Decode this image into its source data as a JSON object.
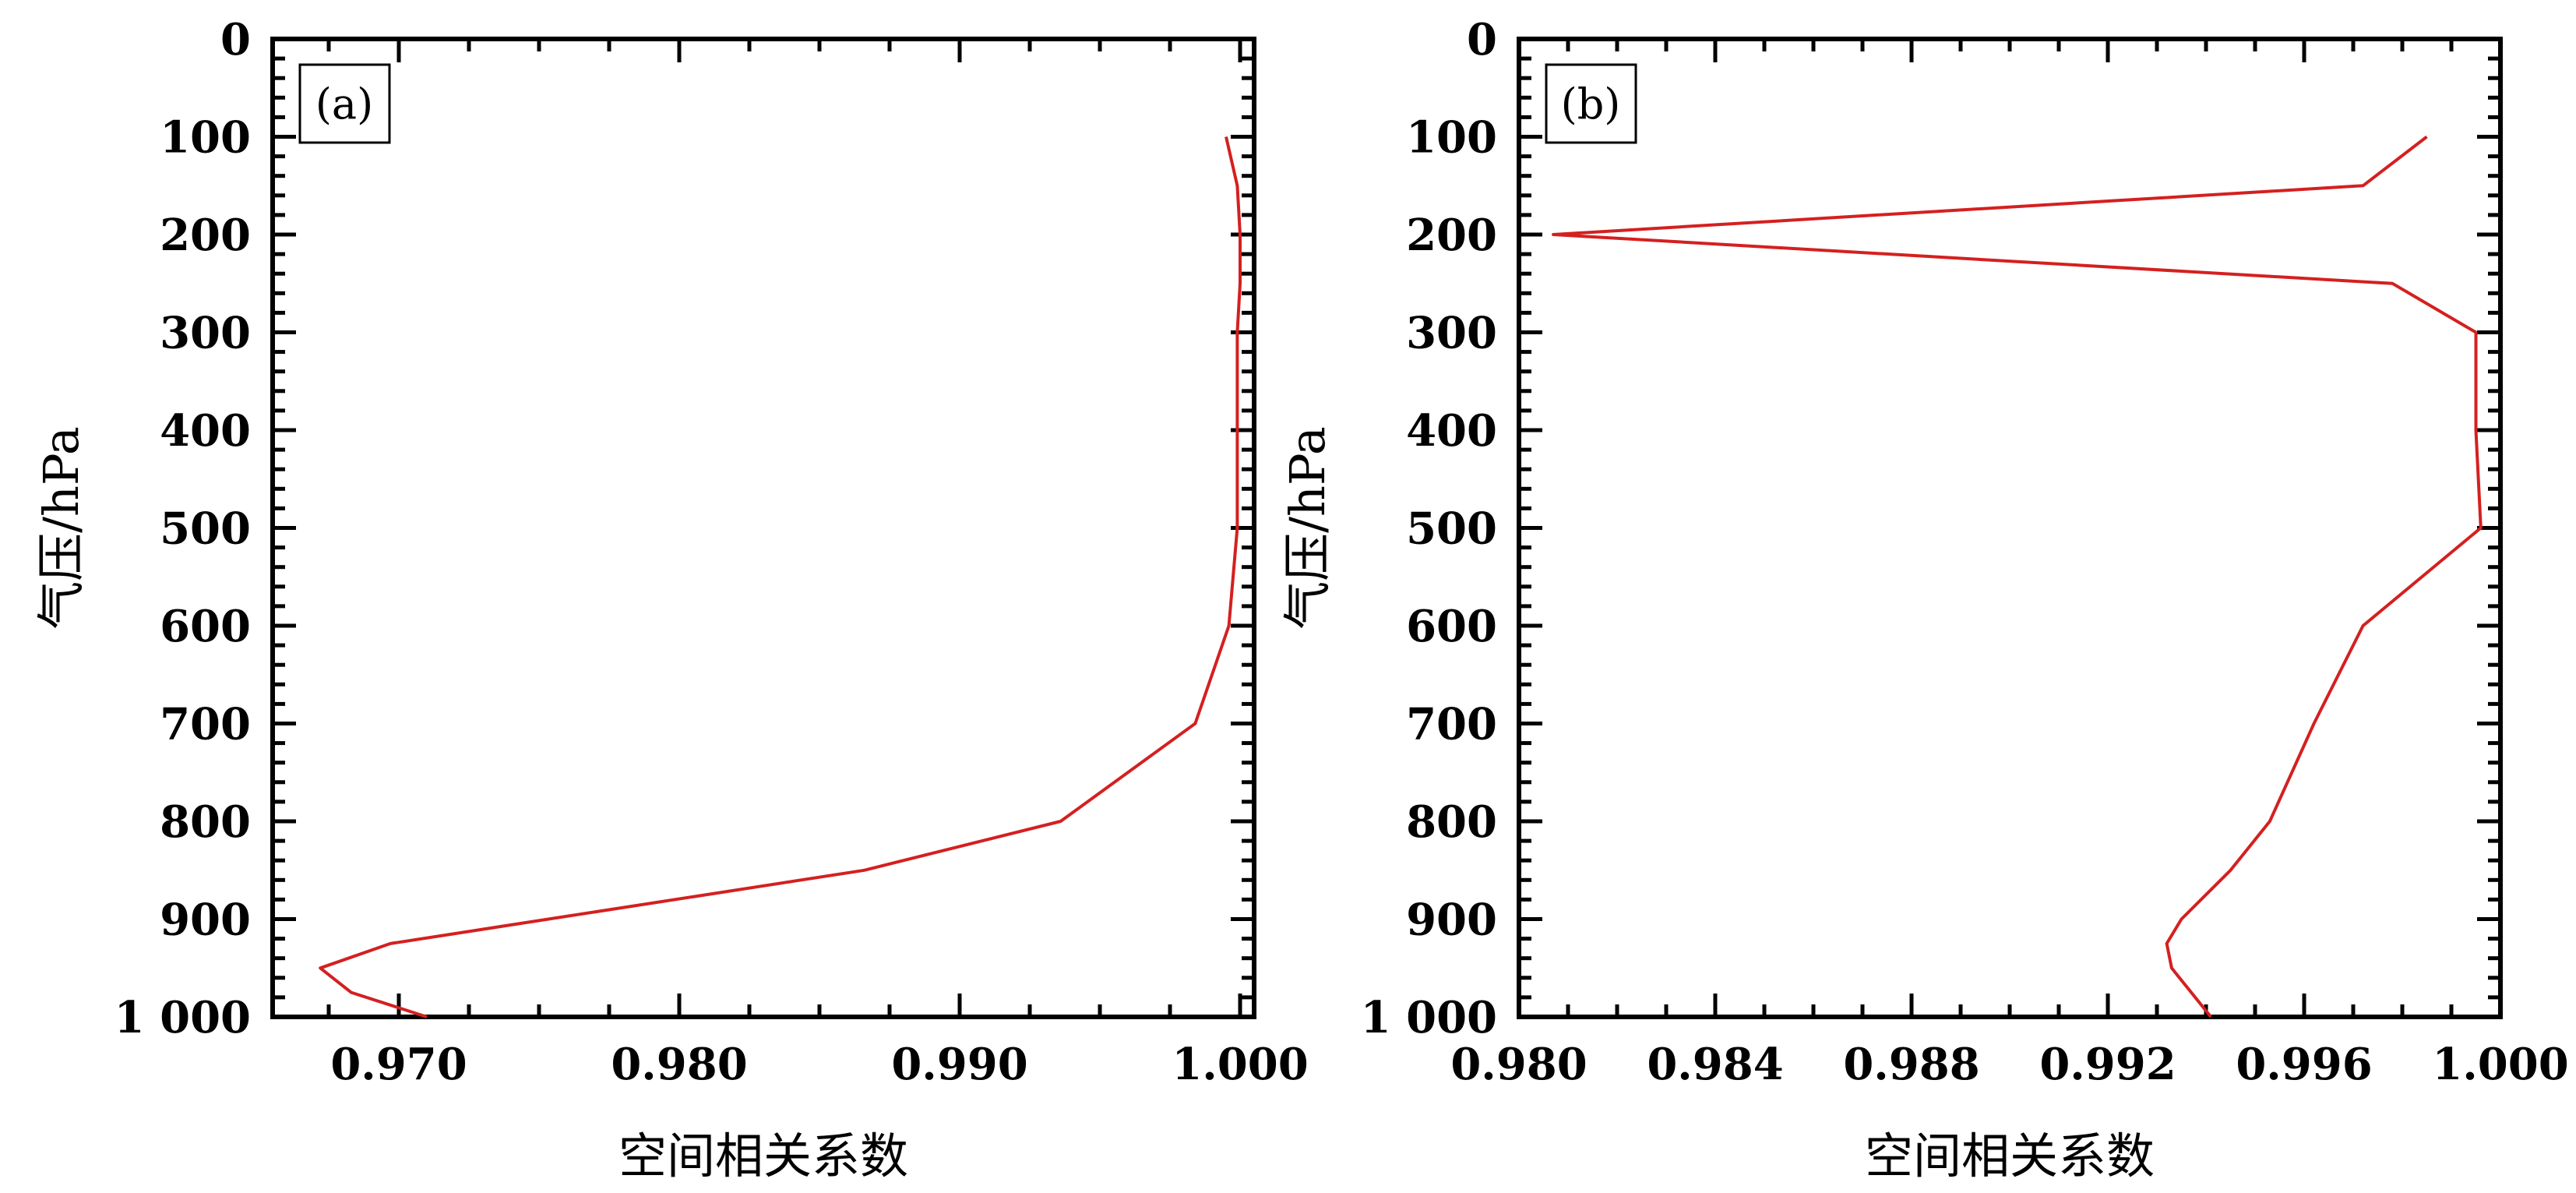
{
  "chart_data": [
    {
      "type": "line",
      "panel_label": "(a)",
      "xlabel": "空间相关系数",
      "ylabel": "气压/hPa",
      "xlim": [
        0.9655,
        1.0005
      ],
      "ylim": [
        1000,
        0
      ],
      "y_inverted": true,
      "x_ticks": [
        0.97,
        0.98,
        0.99,
        1.0
      ],
      "x_tick_labels": [
        "0.970",
        "0.980",
        "0.990",
        "1.000"
      ],
      "x_minor_step": 0.0025,
      "y_ticks": [
        0,
        100,
        200,
        300,
        400,
        500,
        600,
        700,
        800,
        900,
        1000
      ],
      "y_tick_labels": [
        "0",
        "100",
        "200",
        "300",
        "400",
        "500",
        "600",
        "700",
        "800",
        "900",
        "1 000"
      ],
      "y_minor_step": 20,
      "series": [
        {
          "color": "#d42020",
          "points": [
            {
              "x": 0.9995,
              "y": 100
            },
            {
              "x": 0.9999,
              "y": 150
            },
            {
              "x": 1.0,
              "y": 200
            },
            {
              "x": 1.0,
              "y": 250
            },
            {
              "x": 0.9999,
              "y": 300
            },
            {
              "x": 0.9999,
              "y": 400
            },
            {
              "x": 0.9999,
              "y": 500
            },
            {
              "x": 0.9996,
              "y": 600
            },
            {
              "x": 0.9984,
              "y": 700
            },
            {
              "x": 0.9936,
              "y": 800
            },
            {
              "x": 0.9866,
              "y": 850
            },
            {
              "x": 0.9697,
              "y": 925
            },
            {
              "x": 0.9672,
              "y": 950
            },
            {
              "x": 0.9683,
              "y": 975
            },
            {
              "x": 0.971,
              "y": 1000
            }
          ]
        }
      ]
    },
    {
      "type": "line",
      "panel_label": "(b)",
      "xlabel": "空间相关系数",
      "ylabel": "气压/hPa",
      "xlim": [
        0.98,
        1.0
      ],
      "ylim": [
        1000,
        0
      ],
      "y_inverted": true,
      "x_ticks": [
        0.98,
        0.984,
        0.988,
        0.992,
        0.996,
        1.0
      ],
      "x_tick_labels": [
        "0.980",
        "0.984",
        "0.988",
        "0.992",
        "0.996",
        "1.000"
      ],
      "x_minor_step": 0.001,
      "y_ticks": [
        0,
        100,
        200,
        300,
        400,
        500,
        600,
        700,
        800,
        900,
        1000
      ],
      "y_tick_labels": [
        "0",
        "100",
        "200",
        "300",
        "400",
        "500",
        "600",
        "700",
        "800",
        "900",
        "1 000"
      ],
      "y_minor_step": 20,
      "series": [
        {
          "color": "#d42020",
          "points": [
            {
              "x": 0.9985,
              "y": 100
            },
            {
              "x": 0.9972,
              "y": 150
            },
            {
              "x": 0.9807,
              "y": 200
            },
            {
              "x": 0.9978,
              "y": 250
            },
            {
              "x": 0.9995,
              "y": 300
            },
            {
              "x": 0.9995,
              "y": 400
            },
            {
              "x": 0.9996,
              "y": 500
            },
            {
              "x": 0.9972,
              "y": 600
            },
            {
              "x": 0.9962,
              "y": 700
            },
            {
              "x": 0.9953,
              "y": 800
            },
            {
              "x": 0.9945,
              "y": 850
            },
            {
              "x": 0.9935,
              "y": 900
            },
            {
              "x": 0.9932,
              "y": 925
            },
            {
              "x": 0.9933,
              "y": 950
            },
            {
              "x": 0.9941,
              "y": 1000
            }
          ]
        }
      ]
    }
  ]
}
